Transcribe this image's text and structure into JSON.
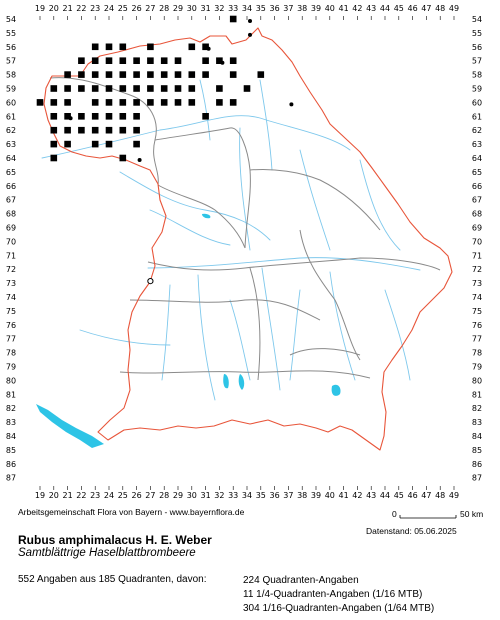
{
  "map": {
    "grid_columns": [
      "19",
      "20",
      "21",
      "22",
      "23",
      "24",
      "25",
      "26",
      "27",
      "28",
      "29",
      "30",
      "31",
      "32",
      "33",
      "34",
      "35",
      "36",
      "37",
      "38",
      "39",
      "40",
      "41",
      "42",
      "43",
      "44",
      "45",
      "46",
      "47",
      "48",
      "49"
    ],
    "grid_rows": [
      "54",
      "55",
      "56",
      "57",
      "58",
      "59",
      "60",
      "61",
      "62",
      "63",
      "64",
      "65",
      "66",
      "67",
      "68",
      "69",
      "70",
      "71",
      "72",
      "73",
      "74",
      "75",
      "76",
      "77",
      "78",
      "79",
      "80",
      "81",
      "82",
      "83",
      "84",
      "85",
      "86",
      "87"
    ],
    "colors": {
      "border": "#e8553a",
      "district": "#8a8a8a",
      "river": "#7ec8ec",
      "lake": "#2ec4e6",
      "record": "#000000"
    }
  },
  "scale": {
    "start_label": "0",
    "end_label": "50 km"
  },
  "footer": {
    "credit": "Arbeitsgemeinschaft Flora von Bayern - www.bayernflora.de",
    "date": "Datenstand: 05.06.2025"
  },
  "species": {
    "name": "Rubus amphimalacus H. E. Weber",
    "common_name": "Samtblättrige Haselblattbrombeere"
  },
  "stats": {
    "summary": "552 Angaben aus 185 Quadranten, davon:",
    "quadrant_records": "224 Quadranten-Angaben",
    "mtb16_records": "11 1/4-Quadranten-Angaben (1/16 MTB)",
    "mtb64_records": "304 1/16-Quadranten-Angaben (1/64 MTB)"
  },
  "occurrence_records": {
    "symbol_legend": {
      "filled_square": "quadrant record",
      "small_dot": "1/16 or 1/64 MTB record",
      "open_circle": "uncertain / historic record"
    },
    "filled_squares": [
      [
        "33",
        "54"
      ],
      [
        "23",
        "56"
      ],
      [
        "24",
        "56"
      ],
      [
        "25",
        "56"
      ],
      [
        "27",
        "56"
      ],
      [
        "30",
        "56"
      ],
      [
        "31",
        "56"
      ],
      [
        "22",
        "57"
      ],
      [
        "23",
        "57"
      ],
      [
        "24",
        "57"
      ],
      [
        "25",
        "57"
      ],
      [
        "26",
        "57"
      ],
      [
        "27",
        "57"
      ],
      [
        "28",
        "57"
      ],
      [
        "29",
        "57"
      ],
      [
        "31",
        "57"
      ],
      [
        "32",
        "57"
      ],
      [
        "33",
        "57"
      ],
      [
        "21",
        "58"
      ],
      [
        "22",
        "58"
      ],
      [
        "23",
        "58"
      ],
      [
        "24",
        "58"
      ],
      [
        "25",
        "58"
      ],
      [
        "26",
        "58"
      ],
      [
        "27",
        "58"
      ],
      [
        "28",
        "58"
      ],
      [
        "29",
        "58"
      ],
      [
        "30",
        "58"
      ],
      [
        "31",
        "58"
      ],
      [
        "33",
        "58"
      ],
      [
        "35",
        "58"
      ],
      [
        "20",
        "59"
      ],
      [
        "21",
        "59"
      ],
      [
        "22",
        "59"
      ],
      [
        "23",
        "59"
      ],
      [
        "24",
        "59"
      ],
      [
        "25",
        "59"
      ],
      [
        "26",
        "59"
      ],
      [
        "27",
        "59"
      ],
      [
        "28",
        "59"
      ],
      [
        "29",
        "59"
      ],
      [
        "30",
        "59"
      ],
      [
        "32",
        "59"
      ],
      [
        "34",
        "59"
      ],
      [
        "19",
        "60"
      ],
      [
        "20",
        "60"
      ],
      [
        "21",
        "60"
      ],
      [
        "23",
        "60"
      ],
      [
        "24",
        "60"
      ],
      [
        "25",
        "60"
      ],
      [
        "26",
        "60"
      ],
      [
        "27",
        "60"
      ],
      [
        "28",
        "60"
      ],
      [
        "29",
        "60"
      ],
      [
        "30",
        "60"
      ],
      [
        "32",
        "60"
      ],
      [
        "33",
        "60"
      ],
      [
        "20",
        "61"
      ],
      [
        "21",
        "61"
      ],
      [
        "22",
        "61"
      ],
      [
        "23",
        "61"
      ],
      [
        "24",
        "61"
      ],
      [
        "25",
        "61"
      ],
      [
        "26",
        "61"
      ],
      [
        "31",
        "61"
      ],
      [
        "20",
        "62"
      ],
      [
        "21",
        "62"
      ],
      [
        "22",
        "62"
      ],
      [
        "23",
        "62"
      ],
      [
        "24",
        "62"
      ],
      [
        "25",
        "62"
      ],
      [
        "26",
        "62"
      ],
      [
        "20",
        "63"
      ],
      [
        "21",
        "63"
      ],
      [
        "23",
        "63"
      ],
      [
        "24",
        "63"
      ],
      [
        "26",
        "63"
      ],
      [
        "20",
        "64"
      ],
      [
        "25",
        "64"
      ]
    ],
    "small_dots": [
      [
        "34",
        "54"
      ],
      [
        "34",
        "55"
      ],
      [
        "31",
        "56"
      ],
      [
        "32",
        "57"
      ],
      [
        "37",
        "60"
      ],
      [
        "21",
        "61"
      ],
      [
        "26",
        "64"
      ]
    ],
    "open_circles": [
      [
        "27",
        "73"
      ]
    ]
  }
}
